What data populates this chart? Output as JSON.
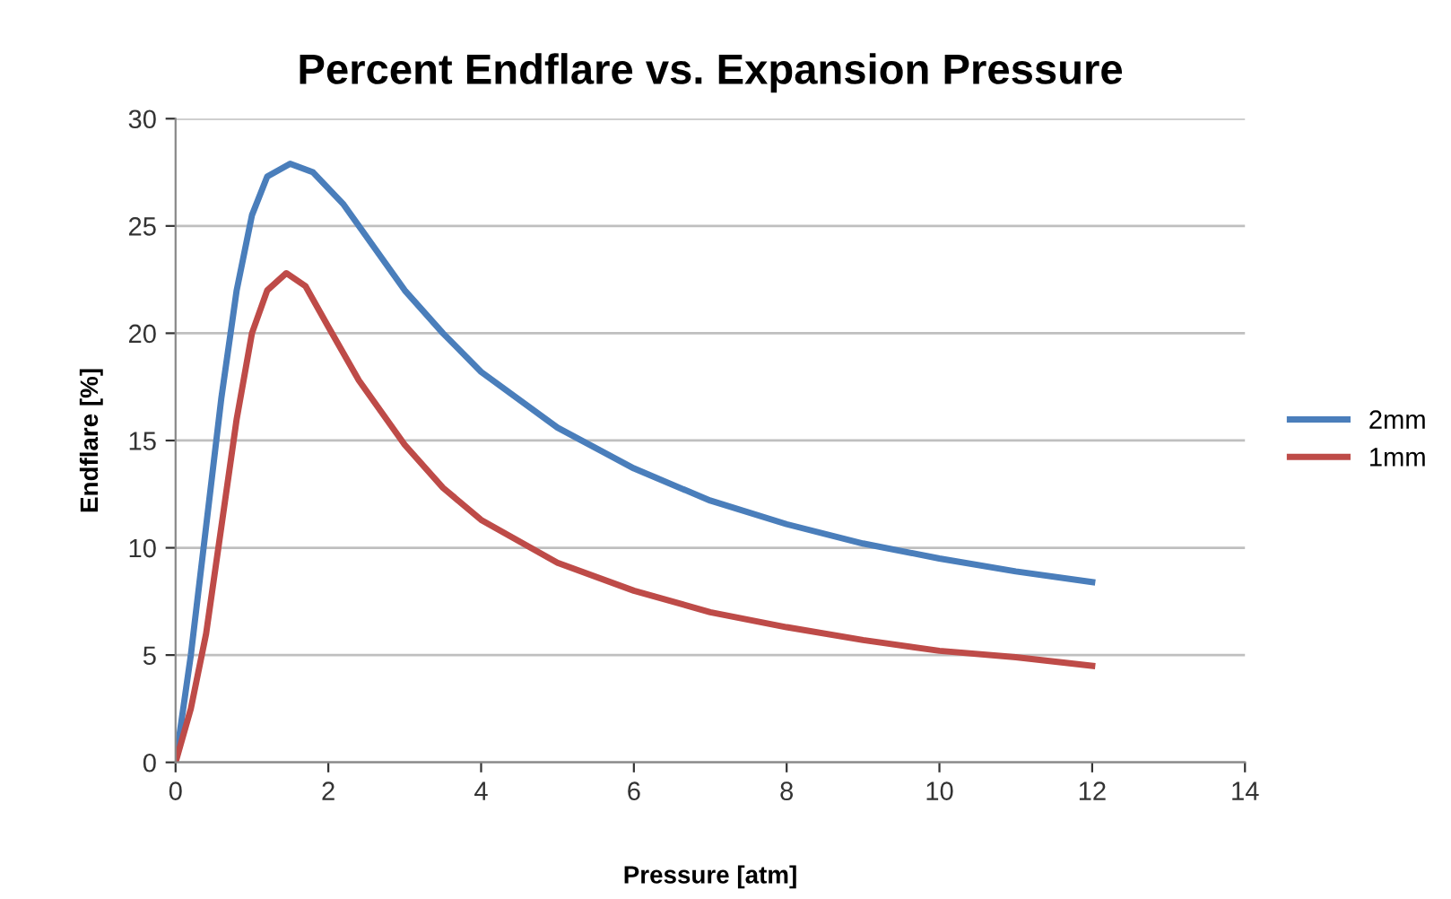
{
  "chart_data": {
    "type": "line",
    "title": "Percent Endflare vs. Expansion Pressure",
    "xlabel": "Pressure [atm]",
    "ylabel": "Endflare [%]",
    "xlim": [
      0,
      14
    ],
    "xticks": [
      0,
      2,
      4,
      6,
      8,
      10,
      12,
      14
    ],
    "ylim": [
      0,
      30
    ],
    "yticks": [
      0,
      5,
      10,
      15,
      20,
      25,
      30
    ],
    "grid": "y",
    "legend": "right",
    "marker": "none",
    "line_style": "solid",
    "series": [
      {
        "name": "2mm",
        "color": "#4a7ebb",
        "x": [
          0,
          0.2,
          0.4,
          0.6,
          0.8,
          1.0,
          1.2,
          1.5,
          1.8,
          2.2,
          2.6,
          3,
          3.5,
          4,
          5,
          6,
          7,
          8,
          9,
          10,
          11,
          12
        ],
        "values": [
          0,
          5,
          11,
          17,
          22,
          25.5,
          27.3,
          27.9,
          27.5,
          26,
          24,
          22,
          20,
          18.2,
          15.6,
          13.7,
          12.2,
          11.1,
          10.2,
          9.5,
          8.9,
          8.4
        ]
      },
      {
        "name": "1mm",
        "color": "#be4b48",
        "x": [
          0,
          0.2,
          0.4,
          0.6,
          0.8,
          1.0,
          1.2,
          1.45,
          1.7,
          2,
          2.4,
          3,
          3.5,
          4,
          5,
          6,
          7,
          8,
          9,
          10,
          11,
          12
        ],
        "values": [
          0,
          2.5,
          6,
          11,
          16,
          20,
          22,
          22.8,
          22.2,
          20.3,
          17.8,
          14.8,
          12.8,
          11.3,
          9.3,
          8,
          7,
          6.3,
          5.7,
          5.2,
          4.9,
          4.5
        ]
      }
    ]
  }
}
